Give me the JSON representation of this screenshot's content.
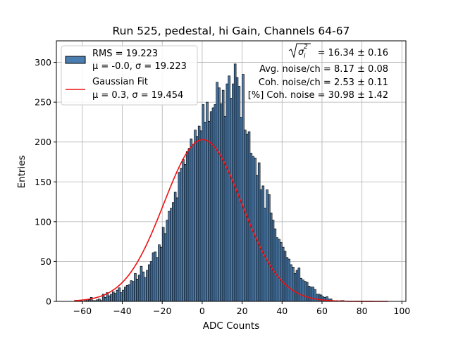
{
  "chart_data": {
    "type": "bar",
    "title": "Run 525, pedestal, hi Gain, Channels 64-67",
    "xlabel": "ADC Counts",
    "ylabel": "Entries",
    "xlim": [
      -73,
      102
    ],
    "ylim": [
      0,
      327
    ],
    "xticks": [
      -60,
      -40,
      -20,
      0,
      20,
      40,
      60,
      80,
      100
    ],
    "xtick_labels": [
      "−60",
      "−40",
      "−20",
      "0",
      "20",
      "40",
      "60",
      "80",
      "100"
    ],
    "yticks": [
      0,
      50,
      100,
      150,
      200,
      250,
      300
    ],
    "grid": true,
    "bin_width": 1,
    "bin_start": -64,
    "hist_counts": [
      1,
      0,
      0,
      1,
      0,
      2,
      1,
      2,
      5,
      1,
      1,
      2,
      3,
      1,
      9,
      5,
      11,
      7,
      9,
      12,
      10,
      14,
      17,
      11,
      14,
      18,
      20,
      21,
      26,
      25,
      35,
      28,
      33,
      44,
      37,
      30,
      39,
      46,
      50,
      61,
      62,
      55,
      71,
      68,
      93,
      85,
      102,
      113,
      117,
      124,
      137,
      130,
      162,
      167,
      178,
      172,
      188,
      192,
      204,
      197,
      215,
      207,
      220,
      214,
      247,
      225,
      250,
      226,
      238,
      243,
      247,
      275,
      268,
      248,
      265,
      232,
      273,
      283,
      255,
      273,
      298,
      281,
      270,
      231,
      285,
      215,
      210,
      213,
      186,
      182,
      180,
      158,
      174,
      140,
      145,
      117,
      140,
      134,
      111,
      102,
      91,
      80,
      78,
      74,
      68,
      63,
      55,
      53,
      46,
      43,
      35,
      39,
      42,
      29,
      27,
      25,
      24,
      19,
      18,
      18,
      15,
      9,
      9,
      8,
      6,
      5,
      6,
      3,
      3,
      1,
      1,
      1,
      0,
      1,
      1
    ],
    "series": [
      {
        "name": "RMS = 19.223",
        "subtitle": "μ = -0.0, σ = 19.223",
        "kind": "histogram",
        "color": "#4a7db0",
        "edgecolor": "#000000"
      },
      {
        "name": "Gaussian Fit",
        "subtitle": "μ = 0.3, σ = 19.454",
        "kind": "line",
        "color": "#ee1111",
        "mu": 0.3,
        "sigma": 19.454,
        "amplitude": 203,
        "x_range": [
          -64,
          93
        ]
      }
    ],
    "legend_placement": "upper-left",
    "annotations": [
      {
        "id": "sigma",
        "label": "= 16.34 ± 0.16"
      },
      {
        "id": "avg",
        "label": "Avg. noise/ch = 8.17 ± 0.08"
      },
      {
        "id": "coh",
        "label": "Coh. noise/ch = 2.53 ± 0.11"
      },
      {
        "id": "pct",
        "label": "[%] Coh. noise = 30.98 ± 1.42"
      }
    ]
  }
}
